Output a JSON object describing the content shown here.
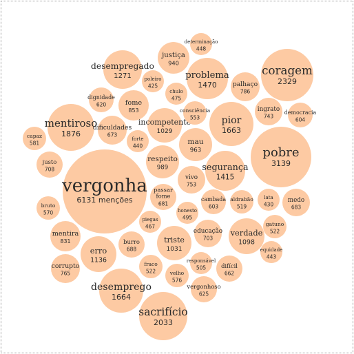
{
  "chart_data": {
    "type": "bubble",
    "title": "",
    "bubble_color": "#fdcaa3",
    "text_color": "#2a2a2a",
    "count_suffix": " menções",
    "items": [
      {
        "word": "vergonha",
        "count": 6131
      },
      {
        "word": "pobre",
        "count": 3139
      },
      {
        "word": "coragem",
        "count": 2329
      },
      {
        "word": "sacrifício",
        "count": 2033
      },
      {
        "word": "mentiroso",
        "count": 1876
      },
      {
        "word": "desemprego",
        "count": 1664
      },
      {
        "word": "pior",
        "count": 1663
      },
      {
        "word": "problema",
        "count": 1470
      },
      {
        "word": "segurança",
        "count": 1415
      },
      {
        "word": "desempregado",
        "count": 1271
      },
      {
        "word": "erro",
        "count": 1136
      },
      {
        "word": "verdade",
        "count": 1098
      },
      {
        "word": "triste",
        "count": 1031
      },
      {
        "word": "incompetente",
        "count": 1029
      },
      {
        "word": "respeito",
        "count": 989
      },
      {
        "word": "mau",
        "count": 963
      },
      {
        "word": "justiça",
        "count": 940
      },
      {
        "word": "fome",
        "count": 853
      },
      {
        "word": "mentira",
        "count": 831
      },
      {
        "word": "palhaço",
        "count": 786
      },
      {
        "word": "corrupto",
        "count": 765
      },
      {
        "word": "vivo",
        "count": 753
      },
      {
        "word": "ingrato",
        "count": 743
      },
      {
        "word": "justo",
        "count": 708
      },
      {
        "word": "educação",
        "count": 703
      },
      {
        "word": "burro",
        "count": 688
      },
      {
        "word": "medo",
        "count": 683
      },
      {
        "word": "passar fome",
        "count": 681
      },
      {
        "word": "dificuldades",
        "count": 673
      },
      {
        "word": "difícil",
        "count": 662
      },
      {
        "word": "vergonhoso",
        "count": 625
      },
      {
        "word": "dignidade",
        "count": 620
      },
      {
        "word": "democracia",
        "count": 604
      },
      {
        "word": "cambada",
        "count": 603
      },
      {
        "word": "capaz",
        "count": 581
      },
      {
        "word": "velho",
        "count": 576
      },
      {
        "word": "bruto",
        "count": 570
      },
      {
        "word": "consciência",
        "count": 553
      },
      {
        "word": "fraco",
        "count": 522
      },
      {
        "word": "gatuno",
        "count": 522
      },
      {
        "word": "aldrabão",
        "count": 519
      },
      {
        "word": "responsável",
        "count": 505
      },
      {
        "word": "honesto",
        "count": 495
      },
      {
        "word": "chulo",
        "count": 475
      },
      {
        "word": "piegas",
        "count": 467
      },
      {
        "word": "determinação",
        "count": 448
      },
      {
        "word": "equidade",
        "count": 443
      },
      {
        "word": "forte",
        "count": 440
      },
      {
        "word": "lata",
        "count": 430
      },
      {
        "word": "poleiro",
        "count": 425
      }
    ]
  }
}
